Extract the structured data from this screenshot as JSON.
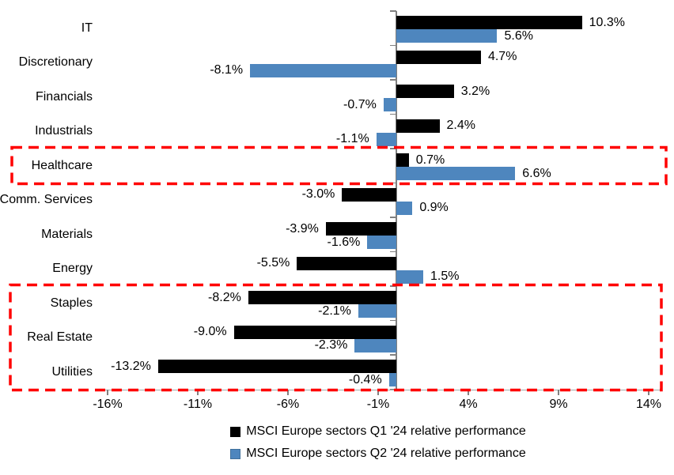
{
  "chart_data": {
    "type": "bar",
    "orientation": "horizontal",
    "title": "",
    "xlabel": "",
    "ylabel": "",
    "xlim": [
      -16,
      14
    ],
    "grid": false,
    "legend_position": "bottom",
    "categories": [
      "IT",
      "Discretionary",
      "Financials",
      "Industrials",
      "Healthcare",
      "Comm. Services",
      "Materials",
      "Energy",
      "Staples",
      "Real Estate",
      "Utilities"
    ],
    "series": [
      {
        "name": "MSCI Europe sectors Q1 '24 relative performance",
        "color": "#000000",
        "values": [
          10.3,
          4.7,
          3.2,
          2.4,
          0.7,
          -3.0,
          -3.9,
          -5.5,
          -8.2,
          -9.0,
          -13.2
        ],
        "labels": [
          "10.3%",
          "4.7%",
          "3.2%",
          "2.4%",
          "0.7%",
          "-3.0%",
          "-3.9%",
          "-5.5%",
          "-8.2%",
          "-9.0%",
          "-13.2%"
        ]
      },
      {
        "name": "MSCI Europe sectors Q2 '24 relative performance",
        "color": "#4E86BE",
        "values": [
          5.6,
          -8.1,
          -0.7,
          -1.1,
          6.6,
          0.9,
          -1.6,
          1.5,
          -2.1,
          -2.3,
          -0.4
        ],
        "labels": [
          "5.6%",
          "-8.1%",
          "-0.7%",
          "-1.1%",
          "6.6%",
          "0.9%",
          "-1.6%",
          "1.5%",
          "-2.1%",
          "-2.3%",
          "-0.4%"
        ]
      }
    ],
    "x_ticks": [
      {
        "value": -16,
        "label": "-16%"
      },
      {
        "value": -11,
        "label": "-11%"
      },
      {
        "value": -6,
        "label": "-6%"
      },
      {
        "value": -1,
        "label": "-1%"
      },
      {
        "value": 4,
        "label": "4%"
      },
      {
        "value": 9,
        "label": "9%"
      },
      {
        "value": 14,
        "label": "14%"
      }
    ],
    "highlight_boxes": [
      {
        "start_category": "Healthcare",
        "end_category": "Healthcare",
        "color": "#FF0000",
        "style": "dashed"
      },
      {
        "start_category": "Staples",
        "end_category": "Utilities",
        "color": "#FF0000",
        "style": "dashed"
      }
    ],
    "colors": {
      "q1_bar": "#000000",
      "q2_bar": "#4E86BE",
      "axis": "#808080",
      "axis_baseline": "#A6A6A6",
      "highlight": "#FF0000",
      "text": "#000000"
    }
  }
}
